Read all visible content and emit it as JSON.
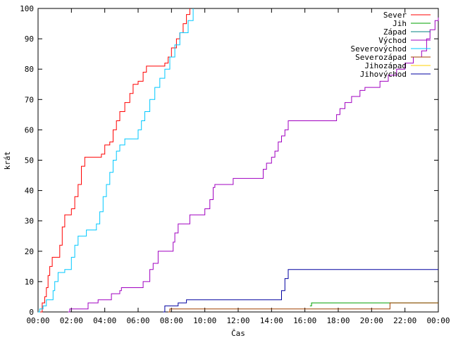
{
  "chart_data": {
    "type": "line",
    "title": "",
    "xlabel": "Čas",
    "ylabel": "krát",
    "xlim": [
      0,
      24
    ],
    "ylim": [
      0,
      100
    ],
    "x_ticks": [
      0,
      2,
      4,
      6,
      8,
      10,
      12,
      14,
      16,
      18,
      20,
      22,
      24
    ],
    "x_tick_labels": [
      "00:00",
      "02:00",
      "04:00",
      "06:00",
      "08:00",
      "10:00",
      "12:00",
      "14:00",
      "16:00",
      "18:00",
      "20:00",
      "22:00",
      "00:00"
    ],
    "y_ticks": [
      0,
      10,
      20,
      30,
      40,
      50,
      60,
      70,
      80,
      90,
      100
    ],
    "grid": false,
    "legend_position": "top-right",
    "step": true,
    "series": [
      {
        "name": "Sever",
        "color": "#ff0000",
        "points": [
          [
            0,
            0
          ],
          [
            0.25,
            3
          ],
          [
            0.4,
            5
          ],
          [
            0.5,
            8
          ],
          [
            0.6,
            12
          ],
          [
            0.7,
            15
          ],
          [
            0.85,
            18
          ],
          [
            1.2,
            18
          ],
          [
            1.3,
            22
          ],
          [
            1.45,
            28
          ],
          [
            1.6,
            32
          ],
          [
            2.0,
            34
          ],
          [
            2.2,
            38
          ],
          [
            2.4,
            42
          ],
          [
            2.6,
            48
          ],
          [
            2.8,
            51
          ],
          [
            3.6,
            51
          ],
          [
            3.8,
            52
          ],
          [
            4.0,
            55
          ],
          [
            4.3,
            56
          ],
          [
            4.5,
            60
          ],
          [
            4.7,
            63
          ],
          [
            4.9,
            66
          ],
          [
            5.2,
            69
          ],
          [
            5.5,
            72
          ],
          [
            5.7,
            75
          ],
          [
            6.0,
            76
          ],
          [
            6.3,
            79
          ],
          [
            6.5,
            81
          ],
          [
            7.4,
            81
          ],
          [
            7.6,
            82
          ],
          [
            7.8,
            84
          ],
          [
            8.0,
            87
          ],
          [
            8.3,
            90
          ],
          [
            8.5,
            92
          ],
          [
            8.7,
            95
          ],
          [
            8.9,
            98
          ],
          [
            9.1,
            100
          ]
        ]
      },
      {
        "name": "Jih",
        "color": "#00a000",
        "points": [
          [
            16.3,
            2
          ],
          [
            16.4,
            3
          ],
          [
            24,
            3
          ]
        ]
      },
      {
        "name": "Západ",
        "color": "#008080",
        "points": []
      },
      {
        "name": "Východ",
        "color": "#a000c0",
        "points": [
          [
            1.8,
            0
          ],
          [
            1.9,
            1
          ],
          [
            2.8,
            1
          ],
          [
            3.0,
            3
          ],
          [
            3.5,
            3
          ],
          [
            3.6,
            4
          ],
          [
            4.2,
            4
          ],
          [
            4.4,
            6
          ],
          [
            4.9,
            7
          ],
          [
            5.0,
            8
          ],
          [
            6.2,
            8
          ],
          [
            6.3,
            10
          ],
          [
            6.6,
            10
          ],
          [
            6.7,
            14
          ],
          [
            6.9,
            16
          ],
          [
            7.2,
            20
          ],
          [
            8.0,
            20
          ],
          [
            8.1,
            23
          ],
          [
            8.2,
            26
          ],
          [
            8.4,
            29
          ],
          [
            9.0,
            29
          ],
          [
            9.1,
            32
          ],
          [
            9.8,
            32
          ],
          [
            10.0,
            34
          ],
          [
            10.3,
            37
          ],
          [
            10.5,
            41
          ],
          [
            10.6,
            42
          ],
          [
            11.5,
            42
          ],
          [
            11.7,
            44
          ],
          [
            13.3,
            44
          ],
          [
            13.5,
            47
          ],
          [
            13.7,
            49
          ],
          [
            14.0,
            51
          ],
          [
            14.2,
            53
          ],
          [
            14.4,
            56
          ],
          [
            14.6,
            58
          ],
          [
            14.8,
            60
          ],
          [
            15.0,
            63
          ],
          [
            17.8,
            63
          ],
          [
            17.9,
            65
          ],
          [
            18.1,
            67
          ],
          [
            18.4,
            69
          ],
          [
            18.8,
            71
          ],
          [
            19.3,
            73
          ],
          [
            19.6,
            74
          ],
          [
            20.5,
            76
          ],
          [
            21.0,
            78
          ],
          [
            21.5,
            80
          ],
          [
            22.0,
            82
          ],
          [
            22.5,
            84
          ],
          [
            23.0,
            86
          ],
          [
            23.3,
            90
          ],
          [
            23.5,
            93
          ],
          [
            23.8,
            96
          ],
          [
            24,
            97
          ]
        ]
      },
      {
        "name": "Severovýchod",
        "color": "#00c8ff",
        "points": [
          [
            0,
            0
          ],
          [
            0.1,
            1
          ],
          [
            0.3,
            2
          ],
          [
            0.5,
            4
          ],
          [
            0.8,
            4
          ],
          [
            0.9,
            7
          ],
          [
            1.0,
            10
          ],
          [
            1.2,
            13
          ],
          [
            1.5,
            13
          ],
          [
            1.6,
            14
          ],
          [
            1.8,
            14
          ],
          [
            2.0,
            18
          ],
          [
            2.2,
            22
          ],
          [
            2.4,
            25
          ],
          [
            2.7,
            25
          ],
          [
            2.9,
            27
          ],
          [
            3.4,
            27
          ],
          [
            3.5,
            29
          ],
          [
            3.7,
            33
          ],
          [
            3.9,
            38
          ],
          [
            4.1,
            42
          ],
          [
            4.3,
            46
          ],
          [
            4.5,
            50
          ],
          [
            4.7,
            53
          ],
          [
            4.9,
            55
          ],
          [
            5.2,
            57
          ],
          [
            5.8,
            57
          ],
          [
            6.0,
            60
          ],
          [
            6.2,
            63
          ],
          [
            6.4,
            66
          ],
          [
            6.7,
            70
          ],
          [
            7.0,
            74
          ],
          [
            7.3,
            77
          ],
          [
            7.6,
            80
          ],
          [
            7.9,
            84
          ],
          [
            8.2,
            88
          ],
          [
            8.5,
            92
          ],
          [
            8.8,
            92
          ],
          [
            9.0,
            96
          ],
          [
            9.3,
            100
          ]
        ]
      },
      {
        "name": "Severozápad",
        "color": "#a04000",
        "points": [
          [
            7.8,
            0
          ],
          [
            7.9,
            1
          ],
          [
            21.0,
            1
          ],
          [
            21.1,
            3
          ],
          [
            24,
            3
          ]
        ]
      },
      {
        "name": "Jihozápad",
        "color": "#ffd000",
        "points": []
      },
      {
        "name": "Jihovýchod",
        "color": "#0000a0",
        "points": [
          [
            7.5,
            0
          ],
          [
            7.6,
            2
          ],
          [
            8.2,
            2
          ],
          [
            8.4,
            3
          ],
          [
            8.8,
            3
          ],
          [
            8.9,
            4
          ],
          [
            14.4,
            4
          ],
          [
            14.6,
            7
          ],
          [
            14.8,
            11
          ],
          [
            15.0,
            14
          ],
          [
            24,
            14
          ]
        ]
      }
    ]
  }
}
